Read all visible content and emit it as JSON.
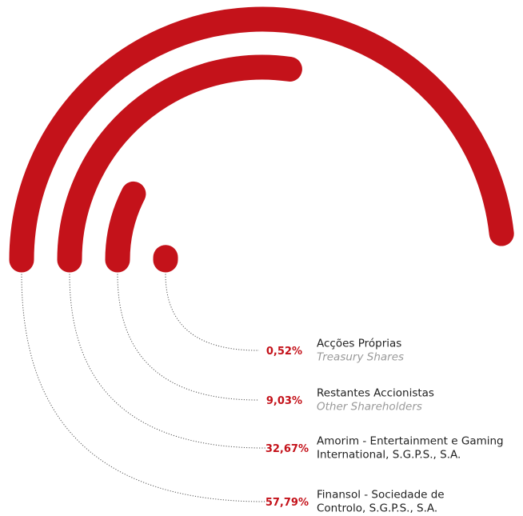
{
  "colors": {
    "accent": "#c4121a",
    "text": "#222222",
    "subtext": "#9a9a9a",
    "leader": "#555555"
  },
  "chart_data": {
    "type": "radial-bar",
    "title": "",
    "max_value": 100,
    "series": [
      {
        "name_lines": [
          "Finansol - Sociedade de",
          "Controlo, S.G.P.S., S.A."
        ],
        "value": 57.79,
        "value_label": "57,79%",
        "subtitle": ""
      },
      {
        "name_lines": [
          "Amorim - Entertainment e Gaming",
          "International, S.G.P.S., S.A."
        ],
        "value": 32.67,
        "value_label": "32,67%",
        "subtitle": ""
      },
      {
        "name_lines": [
          "Restantes Accionistas"
        ],
        "value": 9.03,
        "value_label": "9,03%",
        "subtitle": "Other Shareholders"
      },
      {
        "name_lines": [
          "Acções Próprias"
        ],
        "value": 0.52,
        "value_label": "0,52%",
        "subtitle": "Treasury Shares"
      }
    ]
  }
}
